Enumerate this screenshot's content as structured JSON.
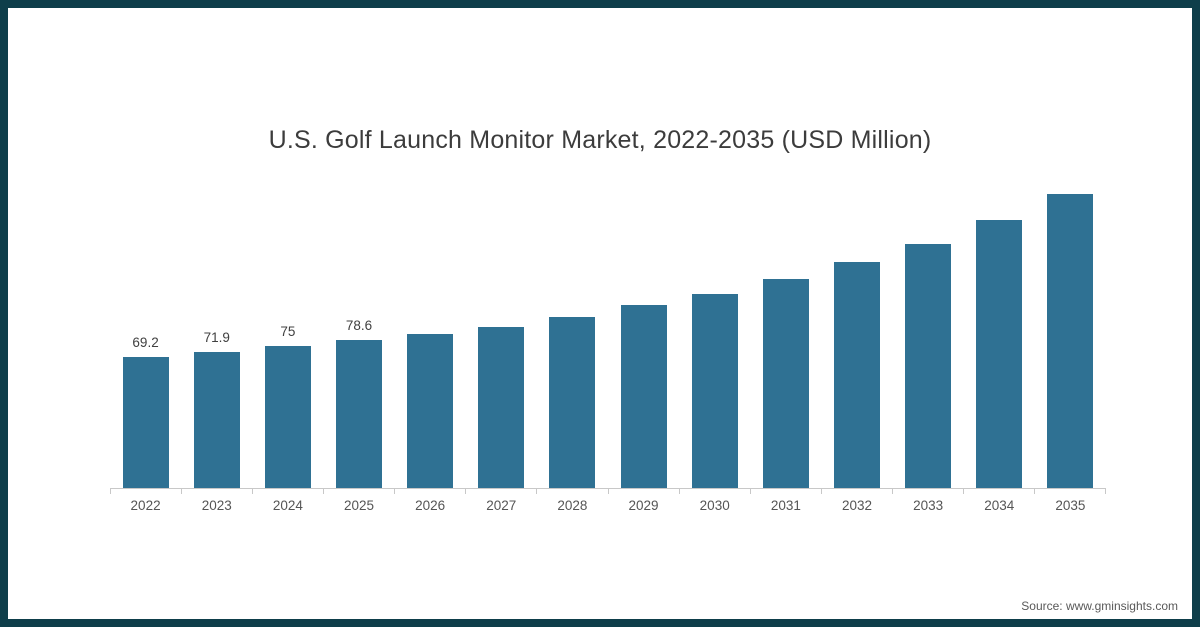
{
  "chart_data": {
    "type": "bar",
    "title": "U.S. Golf Launch Monitor Market, 2022-2035 (USD Million)",
    "categories": [
      "2022",
      "2023",
      "2024",
      "2025",
      "2026",
      "2027",
      "2028",
      "2029",
      "2030",
      "2031",
      "2032",
      "2033",
      "2034",
      "2035"
    ],
    "values": [
      69.2,
      71.9,
      75,
      78.6,
      81.5,
      85.5,
      90.5,
      97,
      103,
      110.5,
      119.5,
      129.5,
      142,
      156
    ],
    "data_labels": [
      "69.2",
      "71.9",
      "75",
      "78.6",
      "",
      "",
      "",
      "",
      "",
      "",
      "",
      "",
      "",
      ""
    ],
    "xlabel": "",
    "ylabel": "",
    "ylim": [
      0,
      160
    ],
    "grid": false,
    "legend": false,
    "bar_color": "#2f7193",
    "axis_line_color": "#c8c8c8"
  },
  "source": {
    "text": "Source: www.gminsights.com"
  },
  "frame_color": "#0e3e4a"
}
